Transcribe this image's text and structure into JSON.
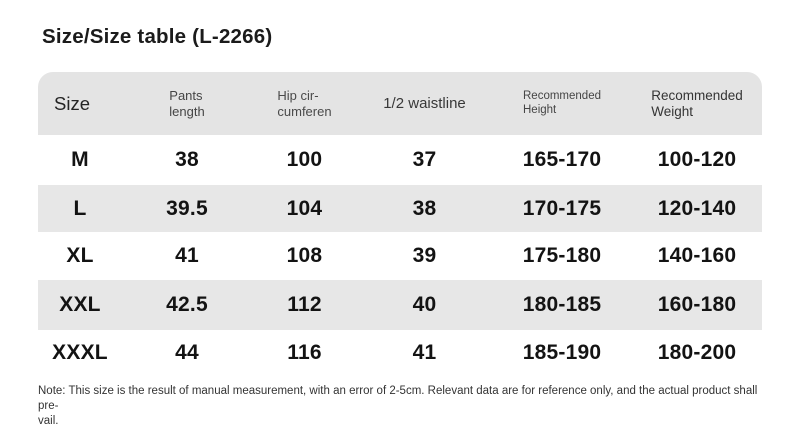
{
  "page": {
    "title": "Size/Size table (L-2266)"
  },
  "theme": {
    "page_bg": "#ffffff",
    "header_bg": "#e4e4e4",
    "stripe_bg": "#e7e7e7",
    "title_color": "#1b1b1b",
    "cell_color": "#131313",
    "note_color": "#333333"
  },
  "table": {
    "headers": [
      {
        "name": "size",
        "lines": [
          "Size"
        ]
      },
      {
        "name": "pants-length",
        "lines": [
          "Pants",
          "length"
        ]
      },
      {
        "name": "hip-circumference",
        "lines": [
          "Hip cir-",
          "cumferen"
        ]
      },
      {
        "name": "half-waistline",
        "lines": [
          "1/2 waistline"
        ]
      },
      {
        "name": "recommended-height",
        "lines": [
          "Recommended",
          "Height"
        ]
      },
      {
        "name": "recommended-weight",
        "lines": [
          "Recommended",
          "Weight"
        ]
      }
    ]
  },
  "chart_data": {
    "type": "table",
    "title": "Size/Size table (L-2266)",
    "columns": [
      "Size",
      "Pants length",
      "Hip circumferen",
      "1/2 waistline",
      "Recommended Height",
      "Recommended Weight"
    ],
    "rows": [
      [
        "M",
        "38",
        "100",
        "37",
        "165-170",
        "100-120"
      ],
      [
        "L",
        "39.5",
        "104",
        "38",
        "170-175",
        "120-140"
      ],
      [
        "XL",
        "41",
        "108",
        "39",
        "175-180",
        "140-160"
      ],
      [
        "XXL",
        "42.5",
        "112",
        "40",
        "180-185",
        "160-180"
      ],
      [
        "XXXL",
        "44",
        "116",
        "41",
        "185-190",
        "180-200"
      ]
    ],
    "layout_hints": {
      "striped_rows": [
        1,
        3
      ],
      "header_rounded_top": true
    }
  },
  "note": {
    "line1": "Note: This size is the result of manual measurement, with an error of 2-5cm. Relevant data are for reference only, and the actual product shall pre-",
    "line2": "vail."
  }
}
